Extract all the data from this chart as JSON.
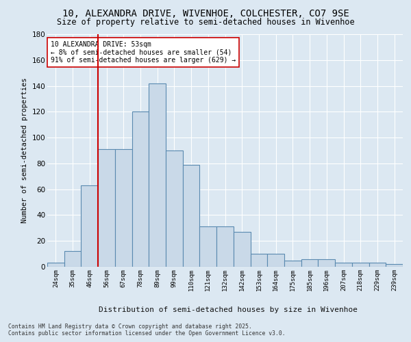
{
  "title1": "10, ALEXANDRA DRIVE, WIVENHOE, COLCHESTER, CO7 9SE",
  "title2": "Size of property relative to semi-detached houses in Wivenhoe",
  "xlabel": "Distribution of semi-detached houses by size in Wivenhoe",
  "ylabel": "Number of semi-detached properties",
  "categories": [
    "24sqm",
    "35sqm",
    "46sqm",
    "56sqm",
    "67sqm",
    "78sqm",
    "89sqm",
    "99sqm",
    "110sqm",
    "121sqm",
    "132sqm",
    "142sqm",
    "153sqm",
    "164sqm",
    "175sqm",
    "185sqm",
    "196sqm",
    "207sqm",
    "218sqm",
    "229sqm",
    "239sqm"
  ],
  "values": [
    3,
    12,
    63,
    91,
    91,
    120,
    142,
    90,
    79,
    31,
    31,
    27,
    10,
    10,
    5,
    6,
    6,
    3,
    3,
    3,
    2
  ],
  "bar_color": "#c9d9e8",
  "bar_edge_color": "#5a8ab0",
  "red_line_x": 2.5,
  "annotation_title": "10 ALEXANDRA DRIVE: 53sqm",
  "annotation_line1": "← 8% of semi-detached houses are smaller (54)",
  "annotation_line2": "91% of semi-detached houses are larger (629) →",
  "footer1": "Contains HM Land Registry data © Crown copyright and database right 2025.",
  "footer2": "Contains public sector information licensed under the Open Government Licence v3.0.",
  "ylim": [
    0,
    180
  ],
  "bg_color": "#dce8f2",
  "plot_bg_color": "#dce8f2"
}
